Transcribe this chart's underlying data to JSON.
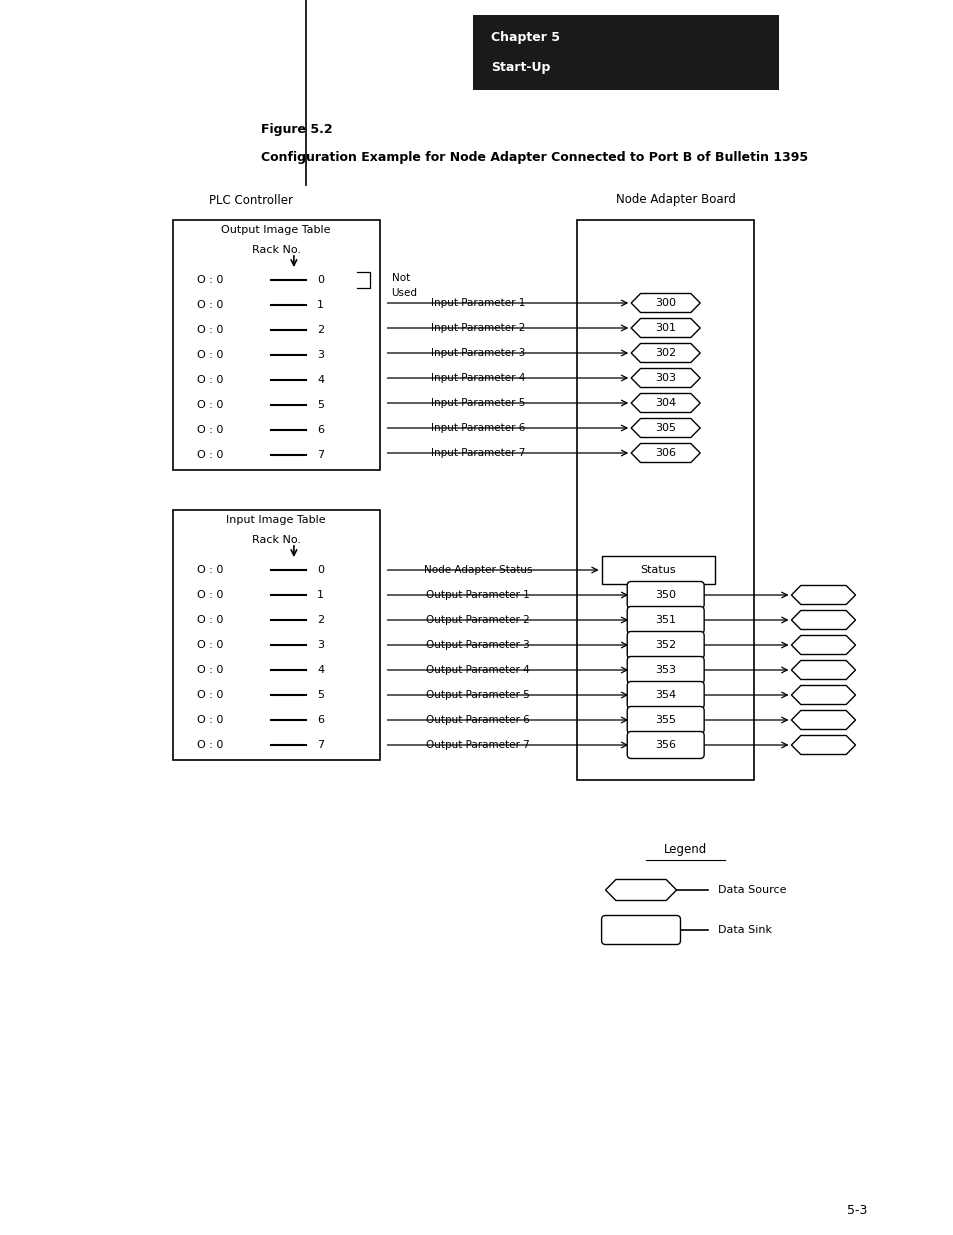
{
  "title_line1": "Figure 5.2",
  "title_line2": "Configuration Example for Node Adapter Connected to Port B of Bulletin 1395",
  "chapter_title": "Chapter 5",
  "chapter_subtitle": "Start-Up",
  "page_number": "5-3",
  "plc_label": "PLC Controller",
  "node_label": "Node Adapter Board",
  "output_table_label": "Output Image Table",
  "output_rack_label": "Rack No.",
  "input_table_label": "Input Image Table",
  "input_rack_label": "Rack No.",
  "not_used_label1": "Not",
  "not_used_label2": "Used",
  "node_status_label": "Node Adapter Status",
  "status_box_label": "Status",
  "output_rows": [
    "O : 0",
    "O : 0",
    "O : 0",
    "O : 0",
    "O : 0",
    "O : 0",
    "O : 0",
    "O : 0"
  ],
  "output_indices": [
    "0",
    "1",
    "2",
    "3",
    "4",
    "5",
    "6",
    "7"
  ],
  "input_rows": [
    "O : 0",
    "O : 0",
    "O : 0",
    "O : 0",
    "O : 0",
    "O : 0",
    "O : 0",
    "O : 0"
  ],
  "input_indices": [
    "0",
    "1",
    "2",
    "3",
    "4",
    "5",
    "6",
    "7"
  ],
  "input_params": [
    "Input Parameter 1",
    "Input Parameter 2",
    "Input Parameter 3",
    "Input Parameter 4",
    "Input Parameter 5",
    "Input Parameter 6",
    "Input Parameter 7"
  ],
  "input_param_nums": [
    "300",
    "301",
    "302",
    "303",
    "304",
    "305",
    "306"
  ],
  "output_params": [
    "Output Parameter 1",
    "Output Parameter 2",
    "Output Parameter 3",
    "Output Parameter 4",
    "Output Parameter 5",
    "Output Parameter 6",
    "Output Parameter 7"
  ],
  "output_param_nums": [
    "350",
    "351",
    "352",
    "353",
    "354",
    "355",
    "356"
  ],
  "legend_title": "Legend",
  "legend_source": "Data Source",
  "legend_sink": "Data Sink",
  "bg_color": "#ffffff",
  "box_color": "#000000",
  "chapter_bg": "#1a1a1a",
  "chapter_text": "#ffffff"
}
